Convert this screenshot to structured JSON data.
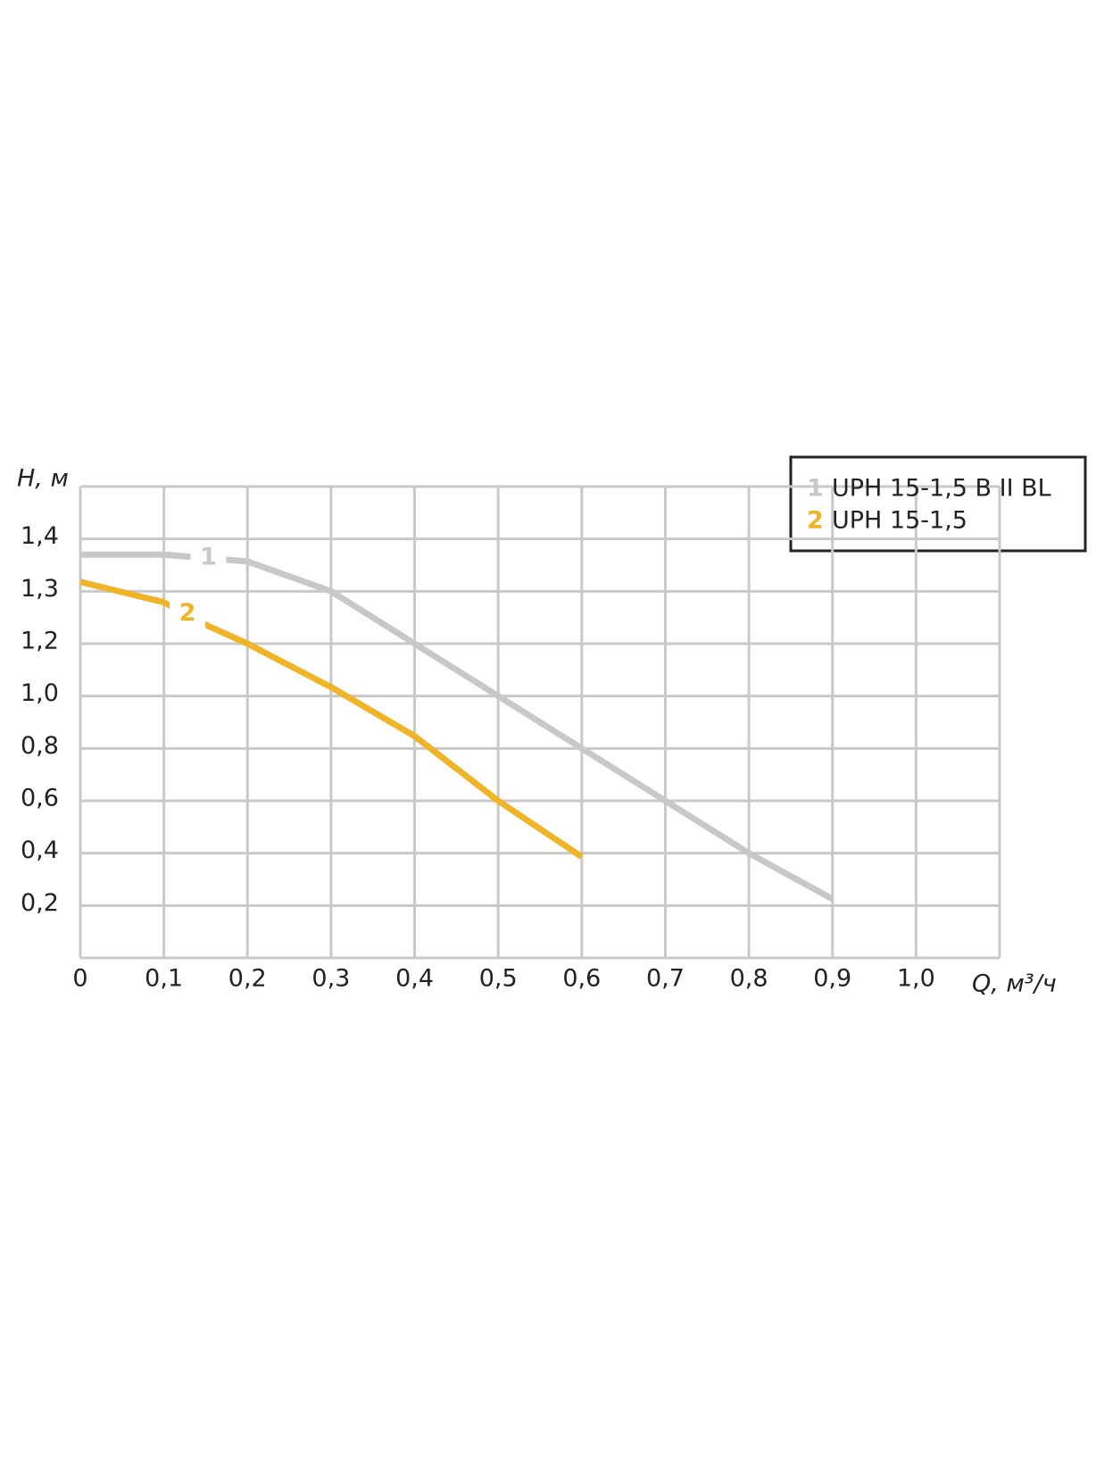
{
  "chart_data": {
    "type": "line",
    "y_label": "H, м",
    "x_label": "Q, м³/ч",
    "xlim": [
      0,
      1.1
    ],
    "xticks": [
      0,
      {
        "value": 0.1,
        "label": "0,1"
      },
      {
        "value": 0.2,
        "label": "0,2"
      },
      {
        "value": 0.3,
        "label": "0,3"
      },
      {
        "value": 0.4,
        "label": "0,4"
      },
      {
        "value": 0.5,
        "label": "0,5"
      },
      {
        "value": 0.6,
        "label": "0,6"
      },
      {
        "value": 0.7,
        "label": "0,7"
      },
      {
        "value": 0.8,
        "label": "0,8"
      },
      {
        "value": 0.9,
        "label": "0,9"
      },
      {
        "value": 1.0,
        "label": "1,0"
      }
    ],
    "ylim": [
      0,
      1.5
    ],
    "yticks": [
      {
        "value": 0.2,
        "label": "0,2"
      },
      {
        "value": 0.4,
        "label": "0,4"
      },
      {
        "value": 0.6,
        "label": "0,6"
      },
      {
        "value": 0.8,
        "label": "0,8"
      },
      {
        "value": 1.0,
        "label": "1,0"
      },
      {
        "value": 1.2,
        "label": "1,2"
      },
      {
        "value": 1.3,
        "label": "1,3"
      },
      {
        "value": 1.4,
        "label": "1,4"
      }
    ],
    "grid": true,
    "legend": "top-right",
    "series": [
      {
        "name": "UPH 15-1,5 B II BL",
        "label": "1",
        "color": "#c8c8c8",
        "x": [
          0,
          0.1,
          0.2,
          0.3,
          0.4,
          0.5,
          0.6,
          0.7,
          0.8,
          0.9
        ],
        "values": [
          1.37,
          1.37,
          1.357,
          1.3,
          1.2,
          1.0,
          0.8,
          0.6,
          0.4,
          0.225
        ]
      },
      {
        "name": "UPH 15-1,5",
        "label": "2",
        "color": "#f0b429",
        "x": [
          0,
          0.1,
          0.15,
          0.2,
          0.3,
          0.4,
          0.5,
          0.6
        ],
        "values": [
          1.318,
          1.279,
          1.236,
          1.2,
          1.034,
          0.847,
          0.6,
          0.386
        ]
      }
    ]
  }
}
